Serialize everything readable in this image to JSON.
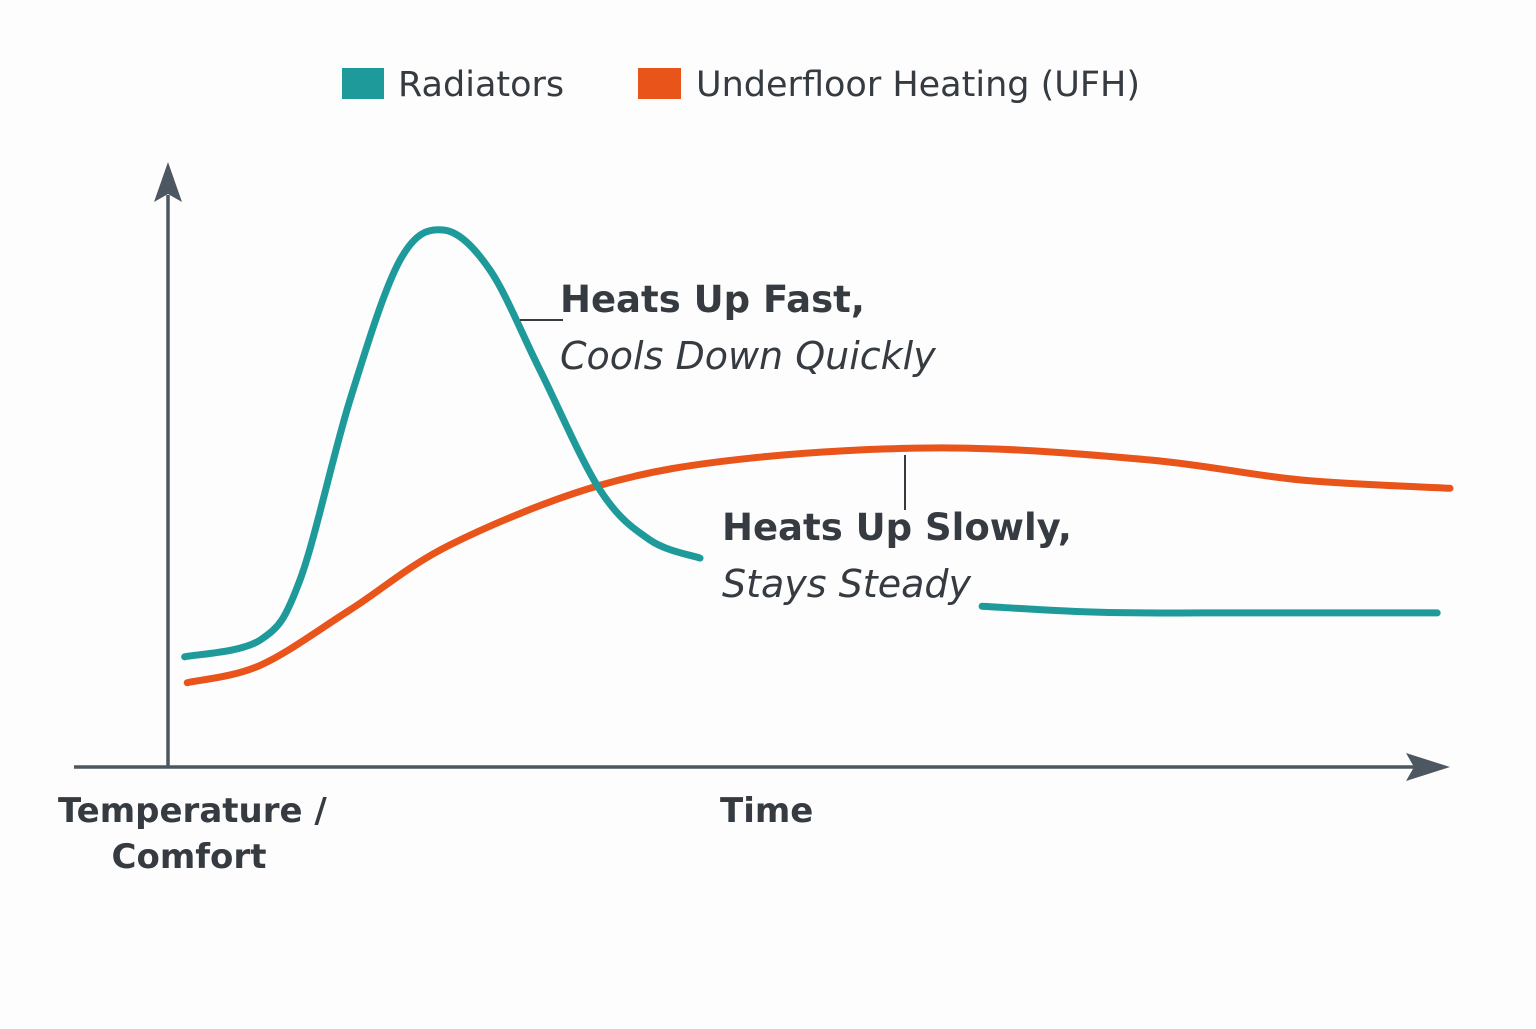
{
  "colors": {
    "radiators": "#1f9a9a",
    "ufh": "#e8541a",
    "axis": "#4d5761"
  },
  "chart_data": {
    "type": "line",
    "title": "",
    "xlabel": "Time",
    "ylabel": "Temperature / Comfort",
    "ylabel_lines": [
      "Temperature /",
      "Comfort"
    ],
    "xlim": [
      0,
      100
    ],
    "ylim": [
      0,
      100
    ],
    "grid": false,
    "legend_position": "top-center",
    "legend": [
      "Radiators",
      "Underfloor Heating (UFH)"
    ],
    "series": [
      {
        "name": "Radiators",
        "segments": [
          [
            [
              1.3,
              18.3
            ],
            [
              7.2,
              21.1
            ],
            [
              10.3,
              31.1
            ],
            [
              14.2,
              61.0
            ],
            [
              18.1,
              84.2
            ],
            [
              21.5,
              89.2
            ],
            [
              25.1,
              82.6
            ],
            [
              29.0,
              66.0
            ],
            [
              33.7,
              46.0
            ],
            [
              37.6,
              37.7
            ],
            [
              41.5,
              34.7
            ]
          ],
          [
            [
              63.5,
              26.7
            ],
            [
              72.7,
              25.7
            ],
            [
              84.4,
              25.6
            ],
            [
              99.0,
              25.6
            ]
          ]
        ]
      },
      {
        "name": "Underfloor Heating (UFH)",
        "segments": [
          [
            [
              1.5,
              14.0
            ],
            [
              7.2,
              16.9
            ],
            [
              14.2,
              26.1
            ],
            [
              22.0,
              36.9
            ],
            [
              33.7,
              46.8
            ],
            [
              45.4,
              51.3
            ],
            [
              61.0,
              53.0
            ],
            [
              76.6,
              51.0
            ],
            [
              88.3,
              47.7
            ],
            [
              100,
              46.3
            ]
          ]
        ]
      }
    ],
    "annotations": [
      {
        "series": "Radiators",
        "line1": "Heats Up Fast,",
        "line2": "Cools Down Quickly"
      },
      {
        "series": "Underfloor Heating (UFH)",
        "line1": "Heats Up Slowly,",
        "line2": "Stays Steady"
      }
    ]
  }
}
